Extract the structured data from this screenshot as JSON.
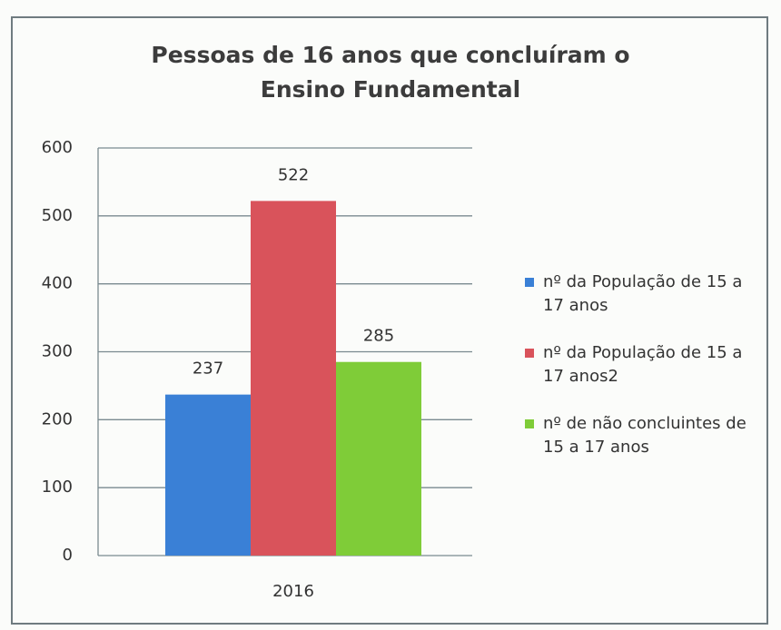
{
  "chart_data": {
    "type": "bar",
    "title": "Pessoas de 16 anos que concluíram o Ensino Fundamental",
    "categories": [
      "2016"
    ],
    "series": [
      {
        "name": "nº da População de 15 a 17 anos",
        "color": "#3a80d6",
        "values": [
          237
        ]
      },
      {
        "name": "nº da População de 15 a 17 anos2",
        "color": "#d9535b",
        "values": [
          522
        ]
      },
      {
        "name": "nº de não concluintes de 15 a 17 anos",
        "color": "#7fcc38",
        "values": [
          285
        ]
      }
    ],
    "ylim": [
      0,
      600
    ],
    "yticks": [
      0,
      100,
      200,
      300,
      400,
      500,
      600
    ],
    "grid": true,
    "legend": "right"
  }
}
